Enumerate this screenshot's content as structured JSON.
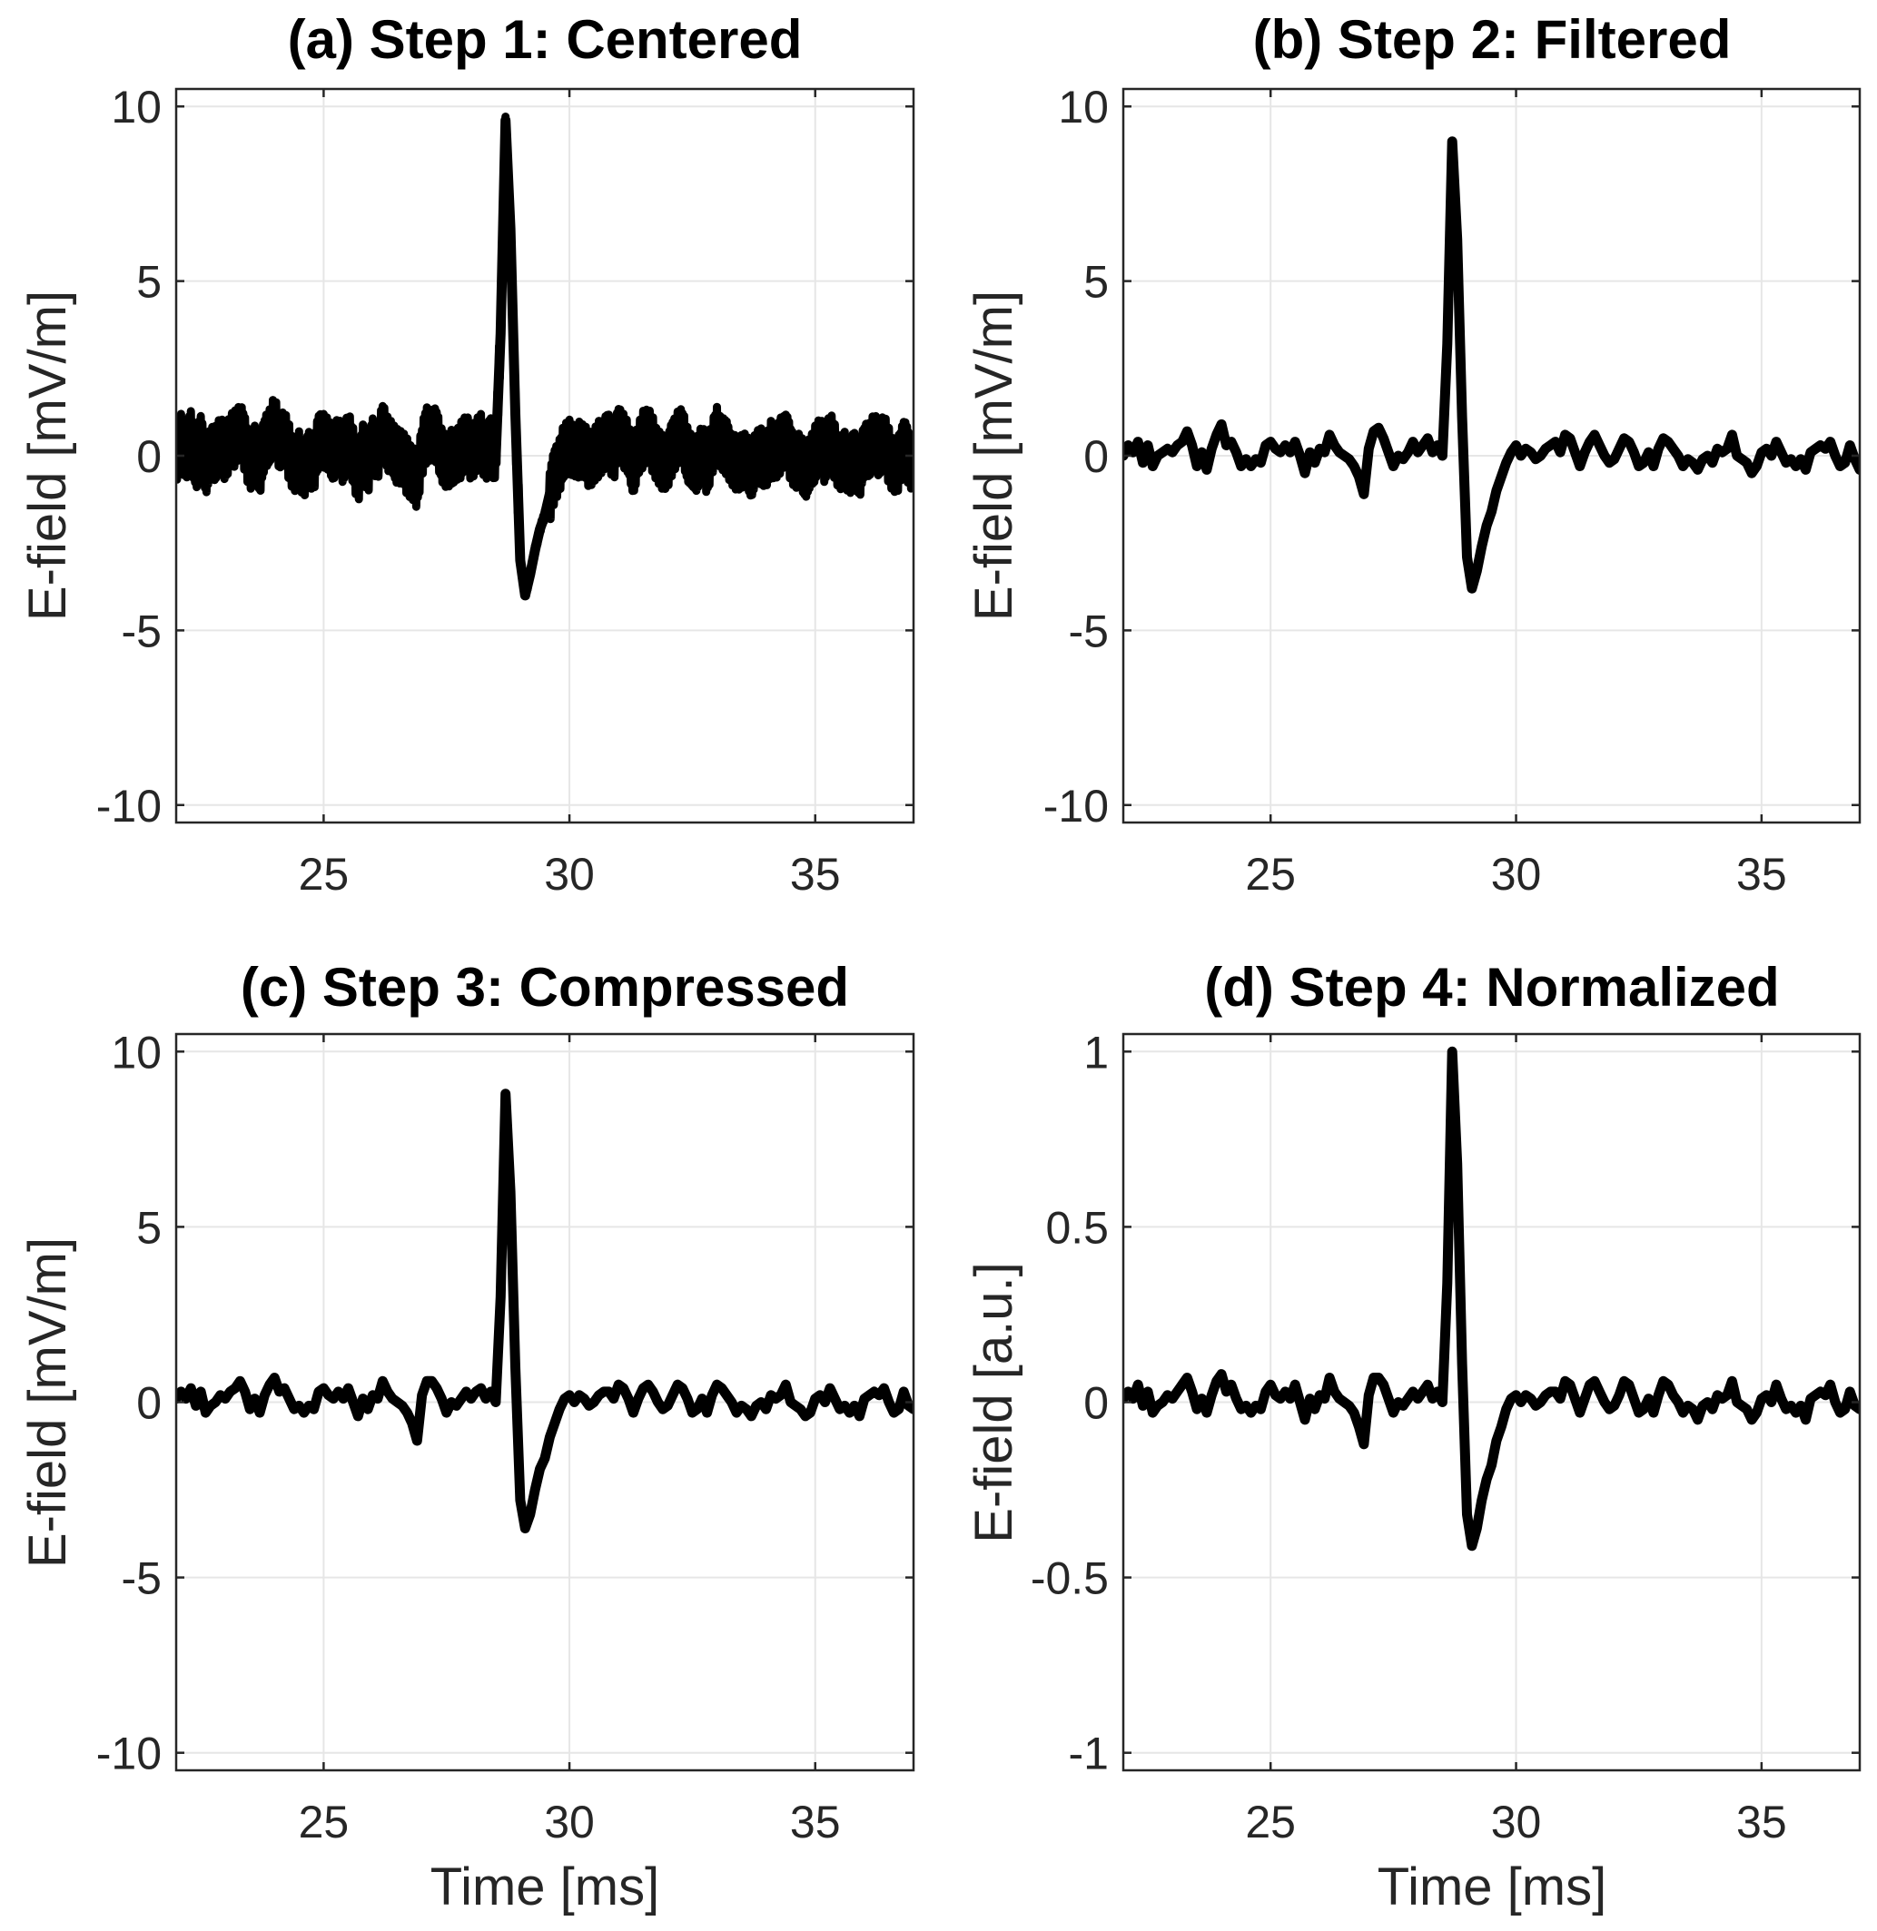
{
  "figure": {
    "colors": {
      "trace": "#000000",
      "axis": "#262626",
      "grid": "#e6e6e6",
      "background": "#ffffff"
    }
  },
  "chart_data": [
    {
      "id": "a",
      "type": "line",
      "title": "(a) Step 1: Centered",
      "xlabel": "",
      "ylabel": "E-field [mV/m]",
      "xlim": [
        22,
        37
      ],
      "ylim": [
        -10.5,
        10.5
      ],
      "xticks": [
        25,
        30,
        35
      ],
      "xtick_labels": [
        "25",
        "30",
        "35"
      ],
      "yticks": [
        10,
        5,
        0,
        -5,
        -10
      ],
      "ytick_labels": [
        "10",
        "5",
        "0",
        "-5",
        "-10"
      ],
      "grid": true,
      "noise_band_halfwidth": 0.8,
      "x_start": 22.0,
      "x_step": 0.1,
      "y": [
        0.0,
        0.4,
        0.1,
        0.5,
        -0.2,
        0.4,
        -0.3,
        0.0,
        0.1,
        0.3,
        0.1,
        0.4,
        0.5,
        0.8,
        0.3,
        -0.2,
        0.1,
        -0.3,
        0.3,
        0.6,
        0.9,
        0.4,
        0.5,
        0.1,
        -0.3,
        -0.1,
        -0.4,
        -0.1,
        -0.2,
        0.4,
        0.5,
        0.2,
        0.1,
        0.3,
        0.0,
        0.5,
        0.0,
        -0.6,
        0.1,
        -0.3,
        0.3,
        0.1,
        0.7,
        0.4,
        0.1,
        0.0,
        -0.1,
        -0.3,
        -0.5,
        -0.7,
        0.2,
        0.6,
        0.7,
        0.5,
        0.1,
        -0.3,
        0.0,
        -0.1,
        0.2,
        0.4,
        0.1,
        0.3,
        0.4,
        0.1,
        0.3,
        0.0,
        3.5,
        9.6,
        6.5,
        1.2,
        -3.0,
        -4.0,
        -3.4,
        -2.7,
        -2.1,
        -1.7,
        -1.1,
        -0.6,
        -0.2,
        0.1,
        0.3,
        0.0,
        0.2,
        0.1,
        -0.1,
        0.0,
        0.2,
        0.4,
        0.4,
        0.1,
        0.6,
        0.5,
        0.1,
        -0.3,
        0.1,
        0.5,
        0.6,
        0.3,
        0.0,
        -0.2,
        -0.1,
        0.2,
        0.6,
        0.5,
        0.1,
        -0.3,
        -0.2,
        0.1,
        -0.3,
        0.2,
        0.6,
        0.4,
        0.2,
        0.0,
        -0.3,
        -0.1,
        -0.2,
        -0.4,
        -0.1,
        0.0,
        -0.2,
        0.2,
        0.1,
        0.3,
        0.6,
        0.0,
        -0.1,
        -0.2,
        -0.4,
        -0.3,
        0.1,
        0.3,
        0.0,
        0.5,
        0.1,
        -0.2,
        -0.1,
        -0.3,
        -0.1,
        -0.4,
        0.1,
        0.2,
        0.4,
        0.2,
        0.4,
        0.0,
        -0.3,
        -0.2,
        0.4,
        -0.1,
        -0.2
      ]
    },
    {
      "id": "b",
      "type": "line",
      "title": "(b) Step 2: Filtered",
      "xlabel": "",
      "ylabel": "E-field [mV/m]",
      "xlim": [
        22,
        37
      ],
      "ylim": [
        -10.5,
        10.5
      ],
      "xticks": [
        25,
        30,
        35
      ],
      "xtick_labels": [
        "25",
        "30",
        "35"
      ],
      "yticks": [
        10,
        5,
        0,
        -5,
        -10
      ],
      "ytick_labels": [
        "10",
        "5",
        "0",
        "-5",
        "-10"
      ],
      "grid": true,
      "x_start": 22.0,
      "x_step": 0.1,
      "y": [
        0.0,
        0.3,
        0.1,
        0.4,
        -0.2,
        0.3,
        -0.3,
        0.0,
        0.1,
        0.2,
        0.1,
        0.3,
        0.4,
        0.7,
        0.3,
        -0.3,
        0.1,
        -0.4,
        0.2,
        0.6,
        0.9,
        0.3,
        0.4,
        0.1,
        -0.3,
        -0.1,
        -0.3,
        -0.1,
        -0.2,
        0.3,
        0.4,
        0.2,
        0.1,
        0.3,
        0.1,
        0.4,
        0.0,
        -0.5,
        0.1,
        -0.2,
        0.2,
        0.1,
        0.6,
        0.3,
        0.1,
        0.0,
        -0.1,
        -0.3,
        -0.6,
        -1.1,
        0.2,
        0.7,
        0.8,
        0.5,
        0.1,
        -0.3,
        0.0,
        -0.1,
        0.1,
        0.4,
        0.1,
        0.3,
        0.5,
        0.1,
        0.3,
        0.0,
        3.2,
        9.0,
        6.2,
        1.1,
        -2.9,
        -3.8,
        -3.3,
        -2.6,
        -2.0,
        -1.6,
        -1.0,
        -0.6,
        -0.2,
        0.1,
        0.3,
        0.0,
        0.2,
        0.1,
        -0.1,
        0.0,
        0.2,
        0.3,
        0.4,
        0.1,
        0.6,
        0.5,
        0.1,
        -0.3,
        0.1,
        0.4,
        0.6,
        0.3,
        0.0,
        -0.2,
        -0.1,
        0.2,
        0.5,
        0.4,
        0.1,
        -0.3,
        -0.2,
        0.1,
        -0.3,
        0.2,
        0.5,
        0.4,
        0.2,
        0.0,
        -0.3,
        -0.1,
        -0.2,
        -0.4,
        -0.1,
        0.0,
        -0.2,
        0.2,
        0.1,
        0.2,
        0.6,
        0.0,
        -0.1,
        -0.2,
        -0.5,
        -0.3,
        0.1,
        0.2,
        0.0,
        0.4,
        0.1,
        -0.2,
        -0.1,
        -0.3,
        -0.1,
        -0.4,
        0.1,
        0.2,
        0.3,
        0.2,
        0.4,
        0.0,
        -0.3,
        -0.2,
        0.3,
        -0.1,
        -0.4
      ]
    },
    {
      "id": "c",
      "type": "line",
      "title": "(c) Step 3: Compressed",
      "xlabel": "Time [ms]",
      "ylabel": "E-field [mV/m]",
      "xlim": [
        22,
        37
      ],
      "ylim": [
        -10.5,
        10.5
      ],
      "xticks": [
        25,
        30,
        35
      ],
      "xtick_labels": [
        "25",
        "30",
        "35"
      ],
      "yticks": [
        10,
        5,
        0,
        -5,
        -10
      ],
      "ytick_labels": [
        "10",
        "5",
        "0",
        "-5",
        "-10"
      ],
      "grid": true,
      "x_start": 22.0,
      "x_step": 0.1,
      "y": [
        0.1,
        0.3,
        0.1,
        0.4,
        -0.1,
        0.3,
        -0.3,
        -0.1,
        0.0,
        0.2,
        0.1,
        0.3,
        0.4,
        0.6,
        0.3,
        -0.2,
        0.1,
        -0.3,
        0.2,
        0.5,
        0.7,
        0.3,
        0.4,
        0.1,
        -0.2,
        -0.1,
        -0.3,
        -0.1,
        -0.2,
        0.3,
        0.4,
        0.2,
        0.1,
        0.3,
        0.1,
        0.4,
        0.0,
        -0.4,
        0.1,
        -0.2,
        0.2,
        0.1,
        0.6,
        0.3,
        0.1,
        0.0,
        -0.1,
        -0.3,
        -0.6,
        -1.1,
        0.2,
        0.6,
        0.6,
        0.4,
        0.1,
        -0.3,
        0.0,
        -0.1,
        0.1,
        0.3,
        0.1,
        0.3,
        0.4,
        0.1,
        0.3,
        0.0,
        3.0,
        8.8,
        6.0,
        1.0,
        -2.8,
        -3.6,
        -3.2,
        -2.5,
        -1.9,
        -1.6,
        -1.0,
        -0.6,
        -0.2,
        0.1,
        0.2,
        0.0,
        0.2,
        0.1,
        -0.1,
        0.0,
        0.2,
        0.3,
        0.3,
        0.1,
        0.5,
        0.4,
        0.1,
        -0.3,
        0.1,
        0.4,
        0.5,
        0.3,
        0.0,
        -0.2,
        -0.1,
        0.2,
        0.5,
        0.4,
        0.1,
        -0.3,
        -0.2,
        0.1,
        -0.3,
        0.2,
        0.5,
        0.4,
        0.2,
        0.0,
        -0.3,
        -0.1,
        -0.2,
        -0.4,
        -0.1,
        0.0,
        -0.2,
        0.2,
        0.1,
        0.2,
        0.5,
        0.0,
        -0.1,
        -0.2,
        -0.4,
        -0.3,
        0.1,
        0.2,
        0.0,
        0.4,
        0.1,
        -0.2,
        -0.1,
        -0.3,
        -0.1,
        -0.4,
        0.1,
        0.2,
        0.3,
        0.2,
        0.4,
        0.0,
        -0.3,
        -0.2,
        0.3,
        -0.1,
        -0.2
      ]
    },
    {
      "id": "d",
      "type": "line",
      "title": "(d) Step 4: Normalized",
      "xlabel": "Time [ms]",
      "ylabel": "E-field [a.u.]",
      "xlim": [
        22,
        37
      ],
      "ylim": [
        -1.05,
        1.05
      ],
      "xticks": [
        25,
        30,
        35
      ],
      "xtick_labels": [
        "25",
        "30",
        "35"
      ],
      "yticks": [
        1,
        0.5,
        0,
        -0.5,
        -1
      ],
      "ytick_labels": [
        "1",
        "0.5",
        "0",
        "-0.5",
        "-1"
      ],
      "grid": true,
      "x_start": 22.0,
      "x_step": 0.1,
      "y": [
        0.01,
        0.03,
        0.01,
        0.05,
        -0.01,
        0.03,
        -0.03,
        -0.01,
        0.0,
        0.02,
        0.01,
        0.03,
        0.05,
        0.07,
        0.03,
        -0.02,
        0.01,
        -0.03,
        0.02,
        0.06,
        0.08,
        0.03,
        0.05,
        0.01,
        -0.02,
        -0.01,
        -0.03,
        -0.01,
        -0.02,
        0.03,
        0.05,
        0.02,
        0.01,
        0.03,
        0.01,
        0.05,
        0.0,
        -0.05,
        0.01,
        -0.02,
        0.02,
        0.01,
        0.07,
        0.03,
        0.01,
        0.0,
        -0.01,
        -0.03,
        -0.07,
        -0.12,
        0.02,
        0.07,
        0.07,
        0.05,
        0.01,
        -0.03,
        0.0,
        -0.01,
        0.01,
        0.03,
        0.01,
        0.03,
        0.05,
        0.01,
        0.03,
        0.0,
        0.34,
        1.0,
        0.68,
        0.11,
        -0.32,
        -0.41,
        -0.36,
        -0.28,
        -0.22,
        -0.18,
        -0.11,
        -0.07,
        -0.02,
        0.01,
        0.02,
        0.0,
        0.02,
        0.01,
        -0.01,
        0.0,
        0.02,
        0.03,
        0.03,
        0.01,
        0.06,
        0.05,
        0.01,
        -0.03,
        0.01,
        0.05,
        0.06,
        0.03,
        0.0,
        -0.02,
        -0.01,
        0.02,
        0.06,
        0.05,
        0.01,
        -0.03,
        -0.02,
        0.01,
        -0.03,
        0.02,
        0.06,
        0.05,
        0.02,
        0.0,
        -0.03,
        -0.01,
        -0.02,
        -0.05,
        -0.01,
        0.0,
        -0.02,
        0.02,
        0.01,
        0.02,
        0.06,
        0.0,
        -0.01,
        -0.02,
        -0.05,
        -0.03,
        0.01,
        0.02,
        0.0,
        0.05,
        0.01,
        -0.02,
        -0.01,
        -0.03,
        -0.01,
        -0.05,
        0.01,
        0.02,
        0.03,
        0.02,
        0.05,
        0.0,
        -0.03,
        -0.02,
        0.03,
        -0.01,
        -0.02
      ]
    }
  ]
}
